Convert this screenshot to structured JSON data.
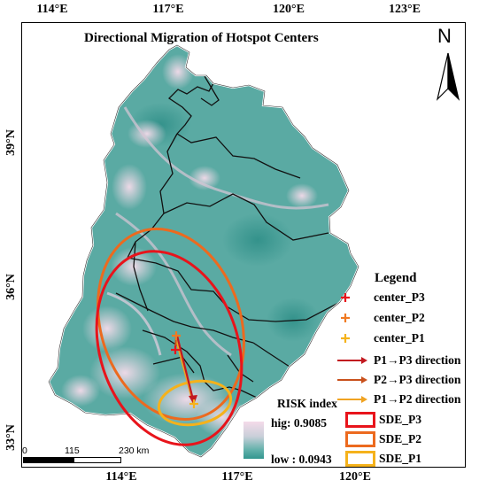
{
  "map": {
    "title": "Directional Migration of Hotspot Centers",
    "north_label": "N",
    "lon_ticks_top": [
      "114°E",
      "117°E",
      "120°E",
      "123°E"
    ],
    "lon_ticks_bottom": [
      "114°E",
      "117°E",
      "120°E"
    ],
    "lat_ticks": [
      "39°N",
      "36°N",
      "33°N"
    ],
    "scale_labels": [
      "0",
      "115",
      "230 km"
    ]
  },
  "legend": {
    "title": "Legend",
    "items": [
      {
        "label": "center_P3",
        "color": "#e8141b",
        "symbol": "cross"
      },
      {
        "label": "center_P2",
        "color": "#f07a22",
        "symbol": "cross"
      },
      {
        "label": "center_P1",
        "color": "#f5b21b",
        "symbol": "cross"
      },
      {
        "label": "P1→P3  direction",
        "color": "#c2181f",
        "symbol": "arrow"
      },
      {
        "label": "P2→P3 direction",
        "color": "#c9501c",
        "symbol": "arrow"
      },
      {
        "label": "P1→P2 direction",
        "color": "#f0a322",
        "symbol": "arrow"
      }
    ],
    "risk_title": "RISK index",
    "risk_high": "hig: 0.9085",
    "risk_low": "low : 0.0943",
    "sde": [
      {
        "label": "SDE_P3",
        "color": "#e8141b"
      },
      {
        "label": "SDE_P2",
        "color": "#ec6a1f"
      },
      {
        "label": "SDE_P1",
        "color": "#f5b21b"
      }
    ]
  },
  "colors": {
    "land_base": "#4fa59e",
    "land_light": "#f4dbea",
    "boundary": "#111111",
    "outline": "#ffffff"
  }
}
